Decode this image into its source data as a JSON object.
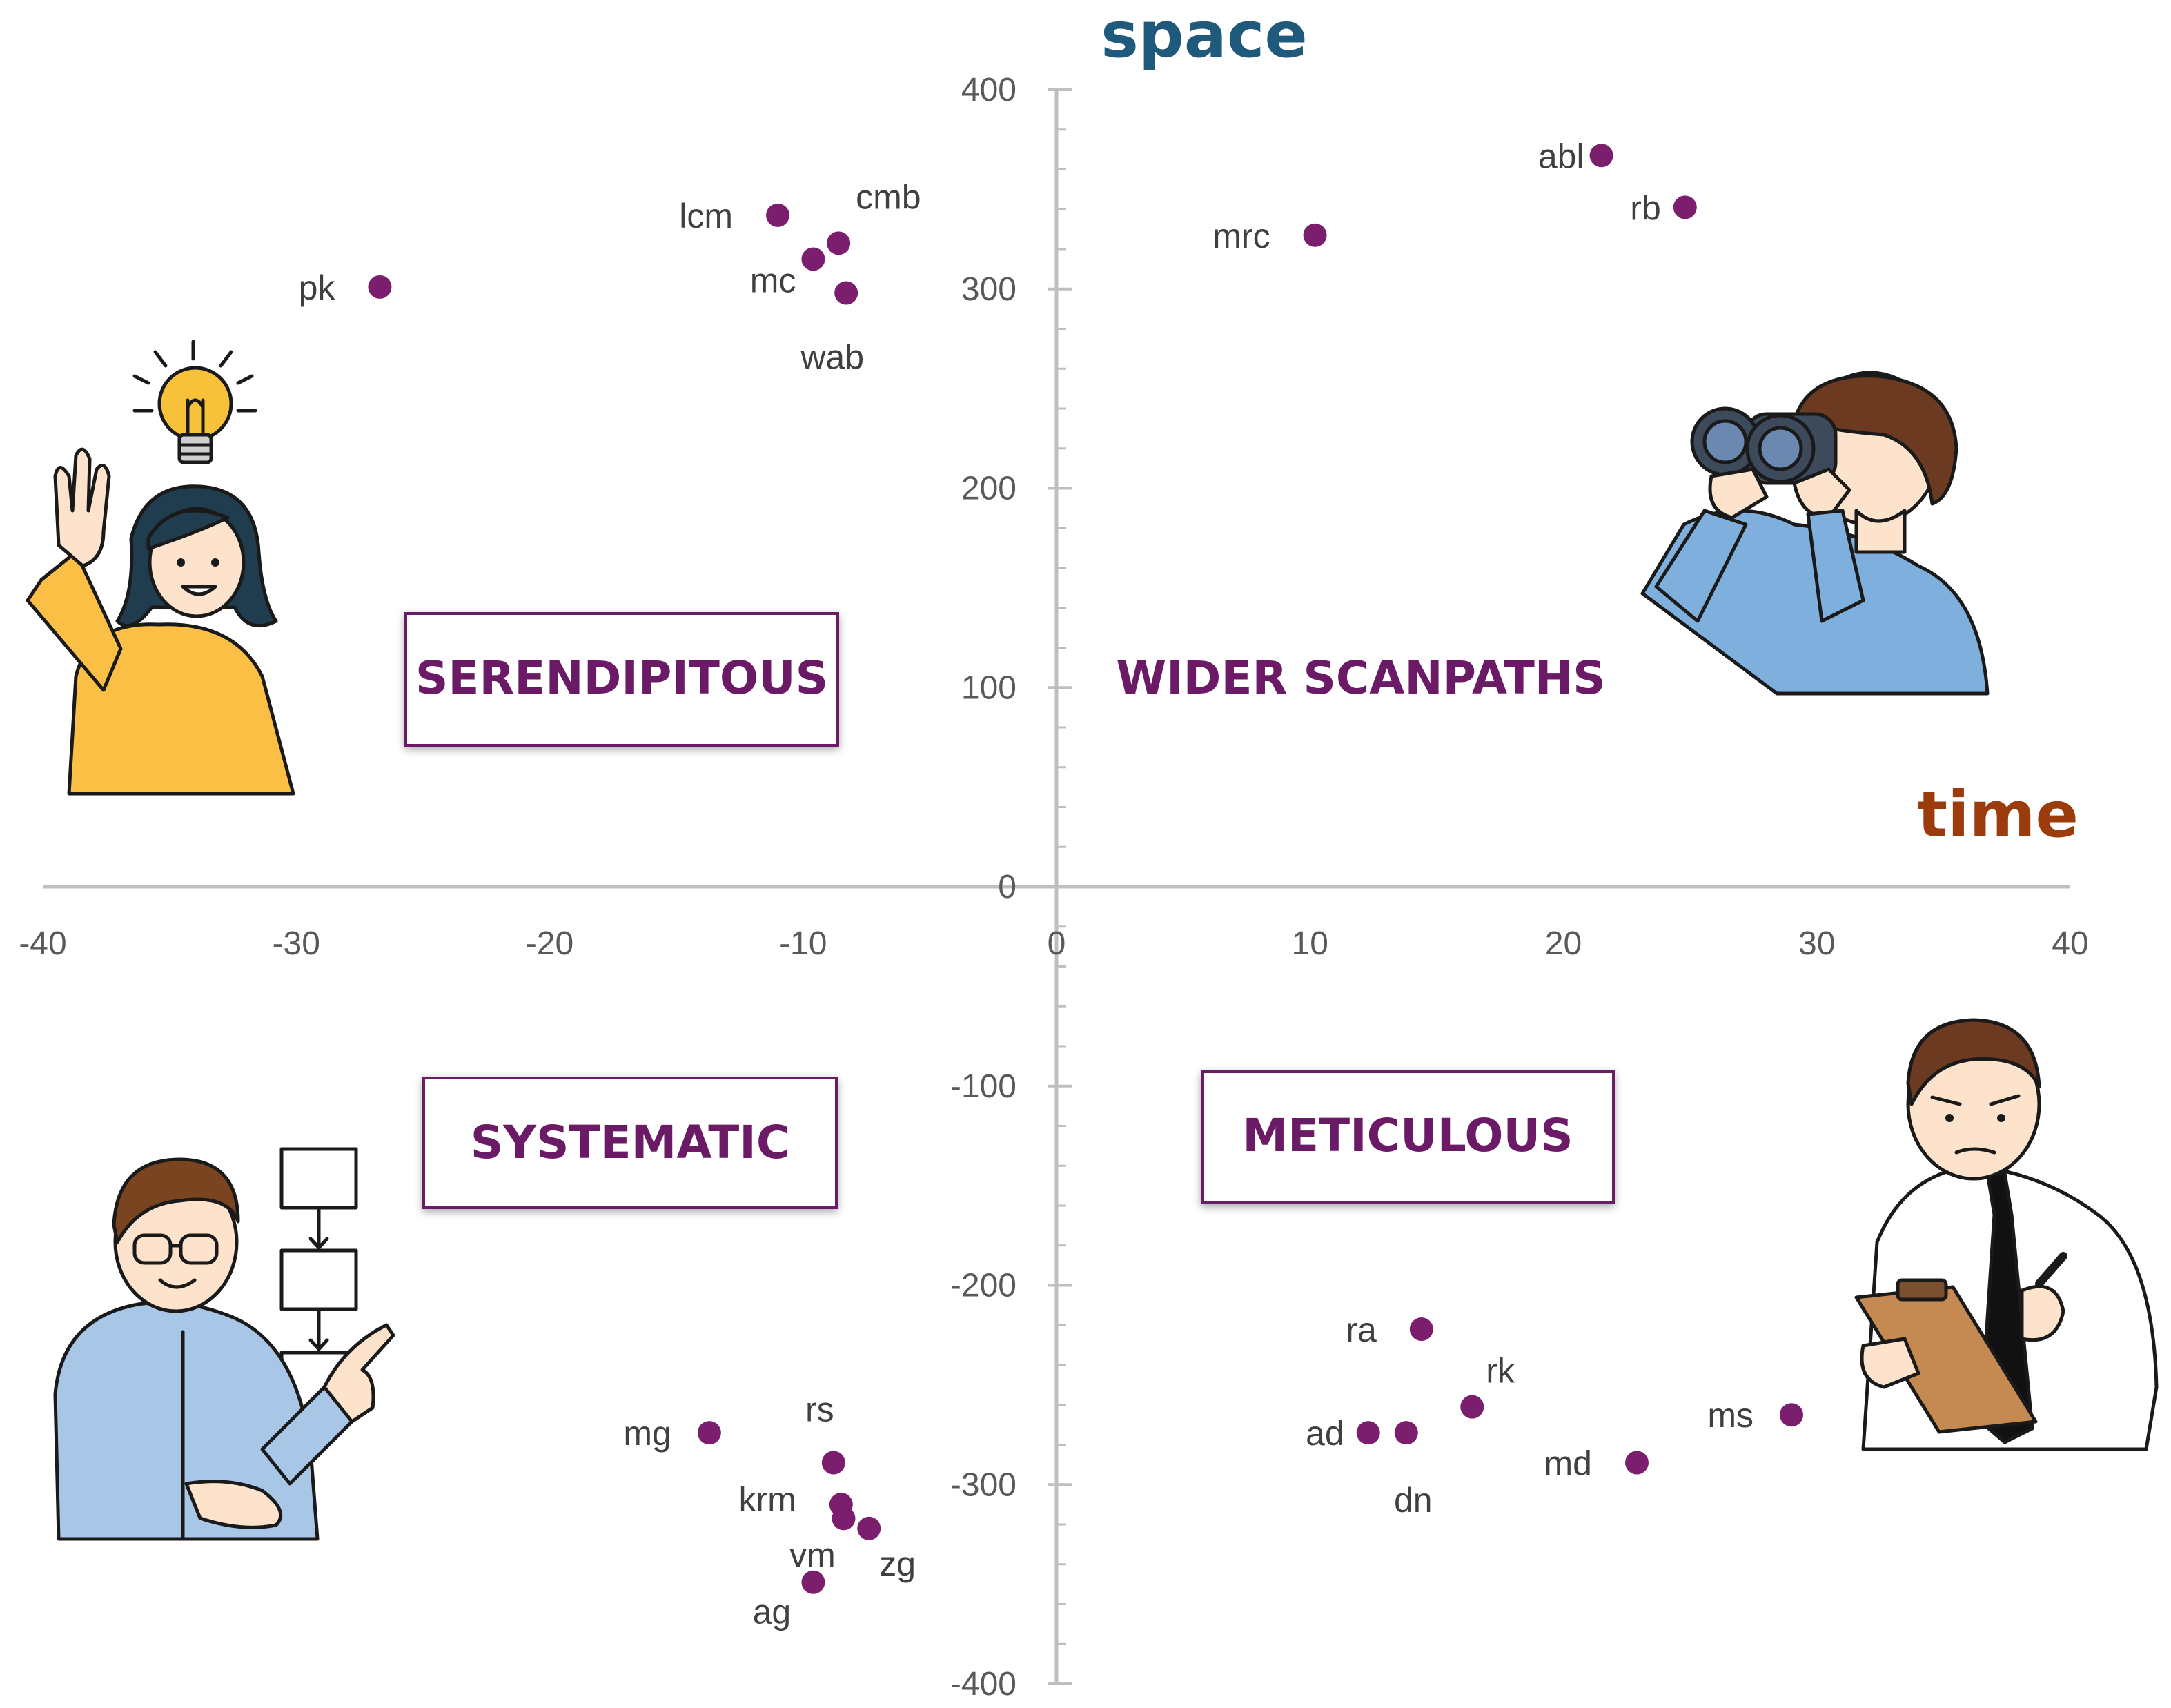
{
  "chart_data": {
    "type": "scatter",
    "xlabel": "time",
    "ylabel": "space",
    "xlim": [
      -40,
      40
    ],
    "ylim": [
      -400,
      400
    ],
    "x_ticks": [
      "-40",
      "-30",
      "-20",
      "-10",
      "0",
      "10",
      "20",
      "30",
      "40"
    ],
    "y_ticks": [
      "400",
      "300",
      "200",
      "100",
      "0",
      "-100",
      "-200",
      "-300",
      "-400"
    ],
    "grid": false,
    "points": [
      {
        "label": "abl",
        "x": 21.5,
        "y": 367
      },
      {
        "label": "rb",
        "x": 24.8,
        "y": 341
      },
      {
        "label": "mrc",
        "x": 10.2,
        "y": 327
      },
      {
        "label": "lcm",
        "x": -11.0,
        "y": 337
      },
      {
        "label": "cmb",
        "x": -8.6,
        "y": 323
      },
      {
        "label": "mc",
        "x": -9.6,
        "y": 315
      },
      {
        "label": "wab",
        "x": -8.3,
        "y": 298
      },
      {
        "label": "pk",
        "x": -26.7,
        "y": 301
      },
      {
        "label": "ra",
        "x": 14.4,
        "y": -222
      },
      {
        "label": "rk",
        "x": 16.4,
        "y": -261
      },
      {
        "label": "ad",
        "x": 12.3,
        "y": -274
      },
      {
        "label": "dn",
        "x": 13.8,
        "y": -274
      },
      {
        "label": "ms",
        "x": 29.0,
        "y": -265
      },
      {
        "label": "md",
        "x": 22.9,
        "y": -289
      },
      {
        "label": "mg",
        "x": -13.7,
        "y": -274
      },
      {
        "label": "rs",
        "x": -8.8,
        "y": -289
      },
      {
        "label": "krm",
        "x": -8.5,
        "y": -310
      },
      {
        "label": "zg",
        "x": -7.4,
        "y": -322
      },
      {
        "label": "vm",
        "x": -8.4,
        "y": -317
      },
      {
        "label": "ag",
        "x": -9.6,
        "y": -349
      }
    ],
    "quadrant_labels": {
      "top_left": "SERENDIPITOUS",
      "top_right": "WIDER SCANPATHS",
      "bottom_left": "SYSTEMATIC",
      "bottom_right": "METICULOUS"
    }
  },
  "colors": {
    "point": "#7b1e6e",
    "quadrant_text": "#6b1a66",
    "xlabel": "#9c3c0c",
    "ylabel": "#1f5a7d",
    "axis": "#bfbfbf",
    "box_border": "#6b1a66"
  },
  "illustrations": {
    "top_left": "woman-idea-lightbulb-icon",
    "top_right": "man-binoculars-icon",
    "bottom_left": "man-flowchart-icon",
    "bottom_right": "man-clipboard-icon"
  }
}
